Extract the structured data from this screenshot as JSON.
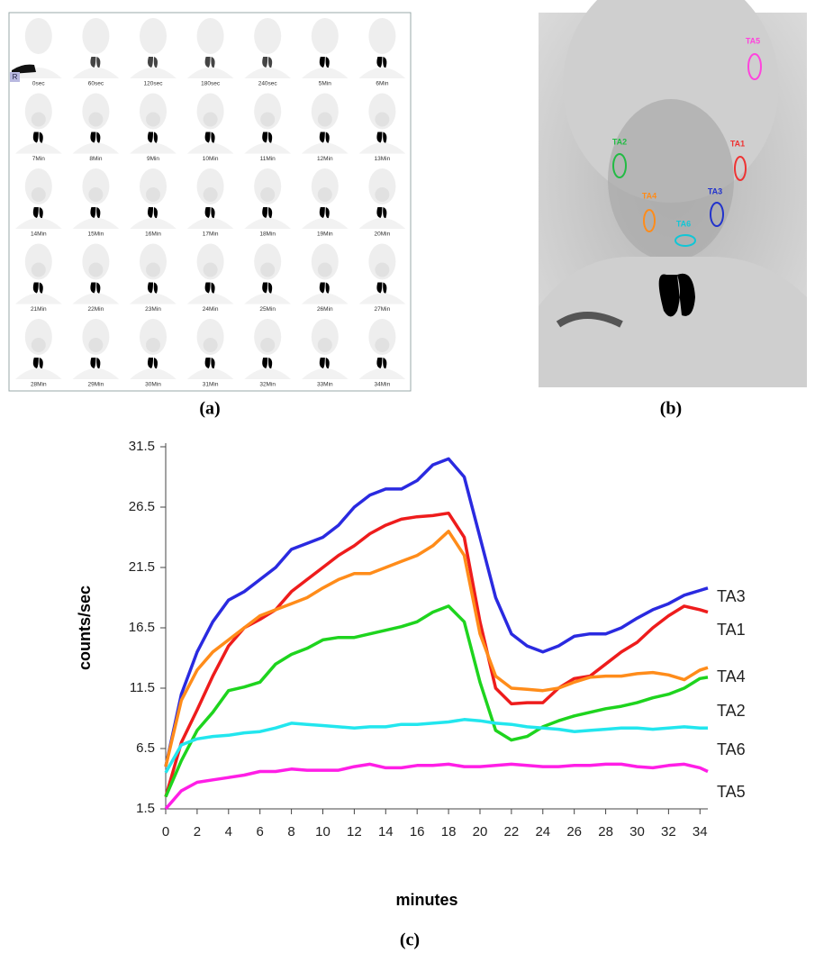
{
  "panel_a": {
    "caption": "(a)",
    "corner_label": "R",
    "frames": [
      "0sec",
      "60sec",
      "120sec",
      "180sec",
      "240sec",
      "5Min",
      "6Min",
      "7Min",
      "8Min",
      "9Min",
      "10Min",
      "11Min",
      "12Min",
      "13Min",
      "14Min",
      "15Min",
      "16Min",
      "17Min",
      "18Min",
      "19Min",
      "20Min",
      "21Min",
      "22Min",
      "23Min",
      "24Min",
      "25Min",
      "26Min",
      "27Min",
      "28Min",
      "29Min",
      "30Min",
      "31Min",
      "32Min",
      "33Min",
      "34Min"
    ]
  },
  "panel_b": {
    "caption": "(b)",
    "rois": [
      {
        "label": "TA5",
        "color": "#ff44dd"
      },
      {
        "label": "TA2",
        "color": "#22bb44"
      },
      {
        "label": "TA1",
        "color": "#ee3333"
      },
      {
        "label": "TA4",
        "color": "#ff8c1a"
      },
      {
        "label": "TA3",
        "color": "#2233cc"
      },
      {
        "label": "TA6",
        "color": "#11c6d6"
      }
    ]
  },
  "chart_data": {
    "type": "line",
    "caption": "(c)",
    "x_label": "minutes",
    "y_label": "counts/sec",
    "x": [
      0,
      1,
      2,
      3,
      4,
      5,
      6,
      7,
      8,
      9,
      10,
      11,
      12,
      13,
      14,
      15,
      16,
      17,
      18,
      19,
      20,
      21,
      22,
      23,
      24,
      25,
      26,
      27,
      28,
      29,
      30,
      31,
      32,
      33,
      34,
      34.5
    ],
    "xlim": [
      0,
      34.5
    ],
    "xticks": [
      0,
      2,
      4,
      6,
      8,
      10,
      12,
      14,
      16,
      18,
      20,
      22,
      24,
      26,
      28,
      30,
      32,
      34
    ],
    "ylim": [
      1.5,
      31.5
    ],
    "yticks": [
      1.5,
      6.5,
      11.5,
      16.5,
      21.5,
      26.5,
      31.5
    ],
    "series": [
      {
        "name": "TA3",
        "color": "#2a2ae0",
        "values": [
          5,
          11,
          14.5,
          17,
          18.8,
          19.5,
          20.5,
          21.5,
          23,
          23.5,
          24,
          25,
          26.5,
          27.5,
          28,
          28,
          28.7,
          30,
          30.5,
          29,
          24,
          19,
          16,
          15,
          14.5,
          15,
          15.8,
          16,
          16,
          16.5,
          17.3,
          18,
          18.5,
          19.2,
          19.6,
          19.8
        ]
      },
      {
        "name": "TA1",
        "color": "#ee1c1c",
        "values": [
          2.5,
          7,
          9.7,
          12.5,
          15,
          16.5,
          17.2,
          18,
          19.5,
          20.5,
          21.5,
          22.5,
          23.3,
          24.3,
          25,
          25.5,
          25.7,
          25.8,
          26,
          24,
          17,
          11.5,
          10.2,
          10.3,
          10.3,
          11.5,
          12.3,
          12.5,
          13.5,
          14.5,
          15.3,
          16.5,
          17.5,
          18.3,
          18,
          17.8
        ]
      },
      {
        "name": "TA4",
        "color": "#ff8c1a",
        "values": [
          5,
          10.5,
          13,
          14.5,
          15.5,
          16.5,
          17.5,
          18,
          18.5,
          19,
          19.8,
          20.5,
          21,
          21,
          21.5,
          22,
          22.5,
          23.3,
          24.5,
          22.5,
          16,
          12.5,
          11.5,
          11.4,
          11.3,
          11.5,
          12,
          12.4,
          12.5,
          12.5,
          12.7,
          12.8,
          12.6,
          12.2,
          13,
          13.2
        ]
      },
      {
        "name": "TA2",
        "color": "#1ed41e",
        "values": [
          2.5,
          5.5,
          8,
          9.5,
          11.3,
          11.6,
          12,
          13.5,
          14.3,
          14.8,
          15.5,
          15.7,
          15.7,
          16,
          16.3,
          16.6,
          17,
          17.8,
          18.3,
          17,
          12,
          8,
          7.2,
          7.5,
          8.3,
          8.8,
          9.2,
          9.5,
          9.8,
          10,
          10.3,
          10.7,
          11,
          11.5,
          12.3,
          12.4
        ]
      },
      {
        "name": "TA6",
        "color": "#22e6ee",
        "values": [
          4.5,
          6.8,
          7.3,
          7.5,
          7.6,
          7.8,
          7.9,
          8.2,
          8.6,
          8.5,
          8.4,
          8.3,
          8.2,
          8.3,
          8.3,
          8.5,
          8.5,
          8.6,
          8.7,
          8.9,
          8.8,
          8.6,
          8.5,
          8.3,
          8.2,
          8.1,
          7.9,
          8,
          8.1,
          8.2,
          8.2,
          8.1,
          8.2,
          8.3,
          8.2,
          8.2
        ]
      },
      {
        "name": "TA5",
        "color": "#ff1ee6",
        "values": [
          1.5,
          3,
          3.7,
          3.9,
          4.1,
          4.3,
          4.6,
          4.6,
          4.8,
          4.7,
          4.7,
          4.7,
          5,
          5.2,
          4.9,
          4.9,
          5.1,
          5.1,
          5.2,
          5,
          5,
          5.1,
          5.2,
          5.1,
          5,
          5,
          5.1,
          5.1,
          5.2,
          5.2,
          5,
          4.9,
          5.1,
          5.2,
          4.9,
          4.6
        ]
      }
    ]
  }
}
